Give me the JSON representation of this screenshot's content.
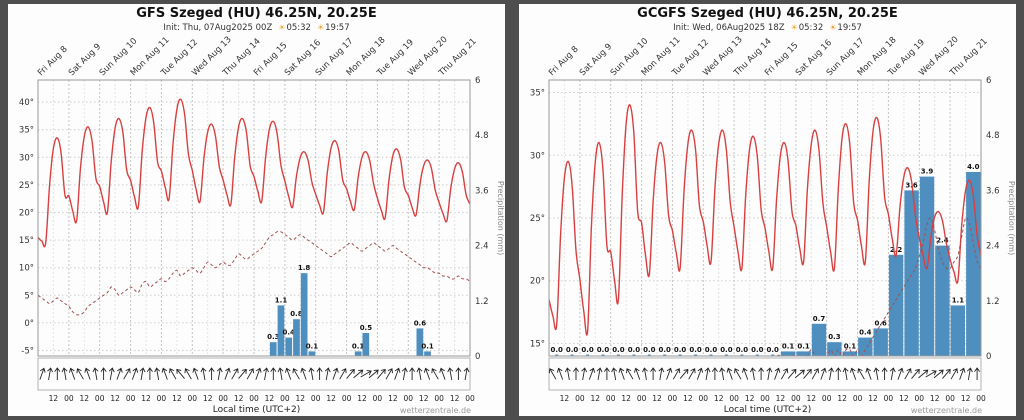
{
  "watermark": "wetterzentrale.de",
  "chart_data": [
    {
      "type": "line+bar",
      "title": "GFS Szeged (HU) 46.25N, 20.25E",
      "init": "Init: Thu, 07Aug2025 00Z",
      "sunrise": "05:32",
      "sunset": "19:57",
      "xlabel": "Local time (UTC+2)",
      "days": [
        "Fri Aug 8",
        "Sat Aug 9",
        "Sun Aug 10",
        "Mon Aug 11",
        "Tue Aug 12",
        "Wed Aug 13",
        "Thu Aug 14",
        "Fri Aug 15",
        "Sat Aug 16",
        "Sun Aug 17",
        "Mon Aug 18",
        "Tue Aug 19",
        "Wed Aug 20",
        "Thu Aug 21"
      ],
      "hour_labels": [
        "12",
        "00"
      ],
      "temp_axis": {
        "unit": "°C",
        "min": -6,
        "max": 44,
        "ticks": [
          40,
          35,
          30,
          25,
          20,
          15,
          10,
          5,
          0,
          -5
        ]
      },
      "precip_axis": {
        "label": "Precipitation (mm)",
        "min": 0,
        "max": 6,
        "ticks": [
          6,
          4.8,
          3.6,
          2.4,
          1.2,
          0
        ]
      },
      "series": [
        {
          "name": "Temperature (°C)",
          "type": "line",
          "color": "#d84040",
          "dashed": false,
          "step_hours": 3,
          "values": [
            15.5,
            14.8,
            14.5,
            25.0,
            31.6,
            33.5,
            30.7,
            23.1,
            23.0,
            20.3,
            18.5,
            27.9,
            33.8,
            35.5,
            33.0,
            26.2,
            24.7,
            21.9,
            20.0,
            29.4,
            35.3,
            37.0,
            34.5,
            27.7,
            25.8,
            22.9,
            21.0,
            30.9,
            37.2,
            39.0,
            36.3,
            29.1,
            27.5,
            24.5,
            22.5,
            32.4,
            38.7,
            40.5,
            37.8,
            30.6,
            27.6,
            24.2,
            22.0,
            29.7,
            34.6,
            36.0,
            33.9,
            28.3,
            25.9,
            23.2,
            21.5,
            30.0,
            35.5,
            37.0,
            34.7,
            28.5,
            26.5,
            23.8,
            22.0,
            30.0,
            35.1,
            36.5,
            34.3,
            28.5,
            25.7,
            22.9,
            21.0,
            26.5,
            30.0,
            31.0,
            29.5,
            25.5,
            23.3,
            21.3,
            20.0,
            27.2,
            31.7,
            33.0,
            31.1,
            25.9,
            24.3,
            22.0,
            20.5,
            26.3,
            30.0,
            31.0,
            29.4,
            25.2,
            22.6,
            20.4,
            19.0,
            25.9,
            30.3,
            31.5,
            29.6,
            24.6,
            23.1,
            20.9,
            19.5,
            25.0,
            28.5,
            29.5,
            28.0,
            24.0,
            21.8,
            19.8,
            18.5,
            24.3,
            27.9,
            29.0,
            27.4,
            23.2,
            21.5
          ]
        },
        {
          "name": "Dew point (°C)",
          "type": "line",
          "color": "#a05050",
          "dashed": true,
          "step_hours": 3,
          "values": [
            5.0,
            4.5,
            4.0,
            3.5,
            4.0,
            4.5,
            4.0,
            3.5,
            3.0,
            2.0,
            1.5,
            1.5,
            2.0,
            3.0,
            3.5,
            4.0,
            4.5,
            5.0,
            5.5,
            6.5,
            6.0,
            5.0,
            5.5,
            6.0,
            6.5,
            6.0,
            5.5,
            7.0,
            7.5,
            6.5,
            7.0,
            7.5,
            8.0,
            7.5,
            8.0,
            9.0,
            9.5,
            8.5,
            9.0,
            9.5,
            10.0,
            9.5,
            9.0,
            10.0,
            11.0,
            10.5,
            10.0,
            10.5,
            11.0,
            10.5,
            10.5,
            11.5,
            12.5,
            12.0,
            11.5,
            12.0,
            12.5,
            13.0,
            13.5,
            14.5,
            15.5,
            16.0,
            16.5,
            16.5,
            16.0,
            15.5,
            15.0,
            15.5,
            16.0,
            15.5,
            15.0,
            14.5,
            14.0,
            13.5,
            13.0,
            12.5,
            12.0,
            12.5,
            13.0,
            13.5,
            14.0,
            14.5,
            14.0,
            13.5,
            13.0,
            13.5,
            14.0,
            14.5,
            14.0,
            13.5,
            13.0,
            13.5,
            14.0,
            13.5,
            13.0,
            12.5,
            12.0,
            11.5,
            11.0,
            10.5,
            10.0,
            10.0,
            9.5,
            9.0,
            9.0,
            8.5,
            8.5,
            8.0,
            8.0,
            8.5,
            8.0,
            8.0,
            7.5
          ]
        },
        {
          "name": "Precipitation (mm)",
          "type": "bar",
          "color": "#4f8fbf",
          "bin_hours": 6,
          "label_zeros": false,
          "values": [
            0,
            0,
            0,
            0,
            0,
            0,
            0,
            0,
            0,
            0,
            0,
            0,
            0,
            0,
            0,
            0,
            0,
            0,
            0,
            0,
            0,
            0,
            0,
            0,
            0,
            0,
            0,
            0,
            0,
            0,
            0.3,
            1.1,
            0.4,
            0.8,
            1.8,
            0.1,
            0,
            0,
            0,
            0,
            0,
            0.1,
            0.5,
            0,
            0,
            0,
            0,
            0,
            0,
            0.6,
            0.1,
            0,
            0,
            0,
            0,
            0
          ]
        }
      ],
      "wind_directions_deg": [
        200,
        190,
        180,
        170,
        160,
        150,
        160,
        170,
        180,
        190,
        200,
        210,
        200,
        190,
        180,
        170,
        160,
        150,
        140,
        150,
        160,
        170,
        180,
        190,
        200,
        210,
        220,
        210,
        200,
        190,
        180,
        170,
        160,
        150,
        160,
        170,
        180,
        190,
        200,
        210,
        220,
        230,
        240,
        230,
        220,
        210,
        200,
        190,
        180,
        170,
        160,
        150,
        160,
        170,
        180,
        190
      ]
    },
    {
      "type": "line+bar",
      "title": "GCGFS Szeged (HU) 46.25N, 20.25E",
      "init": "Init: Wed, 06Aug2025 18Z",
      "sunrise": "05:32",
      "sunset": "19:57",
      "xlabel": "Local time (UTC+2)",
      "days": [
        "Fri Aug 8",
        "Sat Aug 9",
        "Sun Aug 10",
        "Mon Aug 11",
        "Tue Aug 12",
        "Wed Aug 13",
        "Thu Aug 14",
        "Fri Aug 15",
        "Sat Aug 16",
        "Sun Aug 17",
        "Mon Aug 18",
        "Tue Aug 19",
        "Wed Aug 20",
        "Thu Aug 21"
      ],
      "hour_labels": [
        "12",
        "00"
      ],
      "temp_axis": {
        "unit": "°C",
        "min": 14,
        "max": 36,
        "ticks": [
          35,
          30,
          25,
          20,
          15
        ]
      },
      "precip_axis": {
        "label": "Precipitation (mm)",
        "min": 0,
        "max": 6,
        "ticks": [
          6,
          4.8,
          3.6,
          2.4,
          1.2,
          0
        ]
      },
      "series": [
        {
          "name": "Temperature (°C)",
          "type": "line",
          "color": "#d84040",
          "dashed": false,
          "step_hours": 3,
          "values": [
            18.5,
            17.2,
            16.5,
            23.7,
            28.2,
            29.5,
            27.6,
            22.4,
            20.1,
            17.6,
            16.0,
            24.3,
            29.5,
            31.0,
            28.8,
            22.8,
            22.3,
            20.0,
            18.5,
            27.0,
            32.5,
            34.0,
            31.7,
            25.5,
            24.6,
            22.1,
            20.5,
            26.3,
            30.0,
            31.0,
            29.4,
            25.2,
            24.0,
            22.2,
            21.0,
            27.1,
            30.9,
            32.0,
            30.4,
            26.0,
            24.7,
            22.8,
            21.5,
            27.3,
            30.9,
            32.0,
            30.4,
            26.2,
            24.3,
            22.3,
            21.0,
            26.8,
            30.5,
            31.5,
            29.9,
            25.7,
            24.2,
            22.3,
            21.0,
            26.5,
            30.0,
            31.0,
            29.5,
            25.5,
            24.4,
            22.6,
            21.5,
            27.3,
            30.9,
            32.0,
            30.4,
            26.2,
            24.3,
            22.3,
            21.0,
            27.3,
            31.4,
            32.5,
            30.8,
            26.2,
            24.8,
            22.8,
            21.5,
            27.8,
            31.9,
            33.0,
            31.3,
            26.7,
            25.3,
            23.3,
            22.0,
            25.9,
            28.3,
            29.0,
            27.9,
            25.2,
            23.4,
            22.0,
            21.0,
            23.5,
            25.1,
            25.5,
            24.8,
            23.0,
            21.7,
            20.7,
            20.0,
            24.4,
            27.2,
            28.0,
            26.8,
            23.6,
            22.0
          ]
        },
        {
          "name": "Dew point (°C)",
          "type": "line",
          "color": "#a05050",
          "dashed": true,
          "step_hours": 3,
          "values": [
            11.0,
            10.5,
            10.0,
            10.0,
            10.5,
            10.0,
            10.5,
            11.0,
            10.5,
            10.0,
            9.5,
            9.5,
            10.0,
            10.5,
            11.0,
            11.5,
            11.0,
            11.5,
            12.0,
            12.0,
            11.5,
            11.0,
            11.5,
            12.0,
            12.5,
            12.0,
            12.0,
            12.5,
            13.0,
            12.5,
            12.0,
            12.5,
            13.0,
            12.5,
            12.0,
            12.5,
            13.0,
            12.5,
            13.0,
            13.5,
            13.0,
            12.5,
            12.5,
            13.0,
            13.5,
            13.0,
            12.5,
            13.0,
            13.5,
            13.0,
            13.0,
            13.5,
            14.0,
            13.5,
            13.0,
            13.5,
            13.5,
            13.0,
            13.5,
            14.0,
            14.0,
            13.5,
            13.5,
            14.0,
            14.0,
            13.5,
            13.5,
            14.0,
            14.5,
            14.0,
            13.5,
            14.0,
            14.0,
            14.5,
            14.0,
            14.5,
            14.0,
            14.5,
            14.5,
            14.0,
            14.5,
            14.0,
            14.5,
            15.0,
            15.5,
            16.0,
            16.5,
            17.0,
            17.5,
            18.0,
            18.5,
            19.0,
            19.5,
            20.0,
            20.5,
            21.0,
            22.0,
            23.0,
            24.5,
            25.0,
            24.0,
            22.5,
            21.5,
            21.0,
            21.0,
            21.5,
            22.0,
            23.5,
            25.0,
            24.5,
            23.0,
            21.5,
            21.0
          ]
        },
        {
          "name": "Precipitation (mm)",
          "type": "bar",
          "color": "#4f8fbf",
          "bin_hours": 12,
          "label_zeros": true,
          "values": [
            0,
            0,
            0,
            0,
            0,
            0,
            0,
            0,
            0,
            0,
            0,
            0,
            0,
            0,
            0,
            0.1,
            0.1,
            0.7,
            0.3,
            0.1,
            0.4,
            0.6,
            2.2,
            3.6,
            3.9,
            2.4,
            1.1,
            4.0
          ]
        }
      ],
      "wind_directions_deg": [
        150,
        160,
        170,
        180,
        190,
        200,
        190,
        180,
        170,
        160,
        150,
        160,
        170,
        180,
        190,
        200,
        210,
        220,
        210,
        200,
        190,
        180,
        170,
        160,
        150,
        160,
        170,
        180,
        190,
        200,
        210,
        220,
        230,
        220,
        210,
        200,
        190,
        180,
        170,
        160,
        150,
        160,
        170,
        180,
        190,
        200,
        210,
        220,
        230,
        240,
        230,
        220,
        210,
        200,
        190,
        180
      ]
    }
  ]
}
